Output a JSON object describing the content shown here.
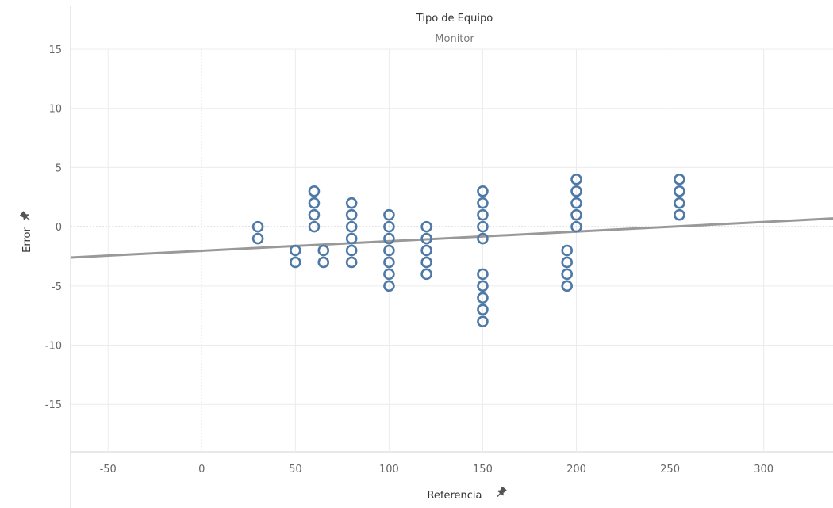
{
  "header": {
    "title": "Tipo de Equipo",
    "value": "Monitor"
  },
  "colors": {
    "marker": "#4e79a7",
    "trend": "#999999",
    "grid": "#ececec",
    "zero": "#b8b8b8",
    "border": "#d0d0d0"
  },
  "icons": {
    "axis_pin": "pin-icon"
  },
  "chart_data": {
    "type": "scatter",
    "xlabel": "Referencia",
    "ylabel": "Error",
    "xlim": [
      -70,
      337
    ],
    "ylim": [
      -19,
      15
    ],
    "x_ticks": [
      -50,
      0,
      50,
      100,
      150,
      200,
      250,
      300
    ],
    "y_ticks": [
      -15,
      -10,
      -5,
      0,
      5,
      10,
      15
    ],
    "grid": true,
    "trend_line": {
      "x": [
        -70,
        337
      ],
      "y": [
        -2.6,
        0.7
      ]
    },
    "points": [
      {
        "x": 30,
        "y": 0
      },
      {
        "x": 30,
        "y": -1
      },
      {
        "x": 50,
        "y": -2
      },
      {
        "x": 50,
        "y": -3
      },
      {
        "x": 60,
        "y": 3
      },
      {
        "x": 60,
        "y": 2
      },
      {
        "x": 60,
        "y": 1
      },
      {
        "x": 60,
        "y": 0
      },
      {
        "x": 65,
        "y": -2
      },
      {
        "x": 65,
        "y": -3
      },
      {
        "x": 80,
        "y": 2
      },
      {
        "x": 80,
        "y": 1
      },
      {
        "x": 80,
        "y": 0
      },
      {
        "x": 80,
        "y": -1
      },
      {
        "x": 80,
        "y": -2
      },
      {
        "x": 80,
        "y": -3
      },
      {
        "x": 100,
        "y": 1
      },
      {
        "x": 100,
        "y": 0
      },
      {
        "x": 100,
        "y": -1
      },
      {
        "x": 100,
        "y": -2
      },
      {
        "x": 100,
        "y": -3
      },
      {
        "x": 100,
        "y": -4
      },
      {
        "x": 100,
        "y": -5
      },
      {
        "x": 120,
        "y": 0
      },
      {
        "x": 120,
        "y": -1
      },
      {
        "x": 120,
        "y": -2
      },
      {
        "x": 120,
        "y": -3
      },
      {
        "x": 120,
        "y": -4
      },
      {
        "x": 150,
        "y": 3
      },
      {
        "x": 150,
        "y": 2
      },
      {
        "x": 150,
        "y": 1
      },
      {
        "x": 150,
        "y": 0
      },
      {
        "x": 150,
        "y": -1
      },
      {
        "x": 150,
        "y": -4
      },
      {
        "x": 150,
        "y": -5
      },
      {
        "x": 150,
        "y": -6
      },
      {
        "x": 150,
        "y": -7
      },
      {
        "x": 150,
        "y": -8
      },
      {
        "x": 195,
        "y": -2
      },
      {
        "x": 195,
        "y": -3
      },
      {
        "x": 195,
        "y": -4
      },
      {
        "x": 195,
        "y": -5
      },
      {
        "x": 200,
        "y": 4
      },
      {
        "x": 200,
        "y": 3
      },
      {
        "x": 200,
        "y": 2
      },
      {
        "x": 200,
        "y": 1
      },
      {
        "x": 200,
        "y": 0
      },
      {
        "x": 255,
        "y": 4
      },
      {
        "x": 255,
        "y": 3
      },
      {
        "x": 255,
        "y": 2
      },
      {
        "x": 255,
        "y": 1
      }
    ]
  }
}
